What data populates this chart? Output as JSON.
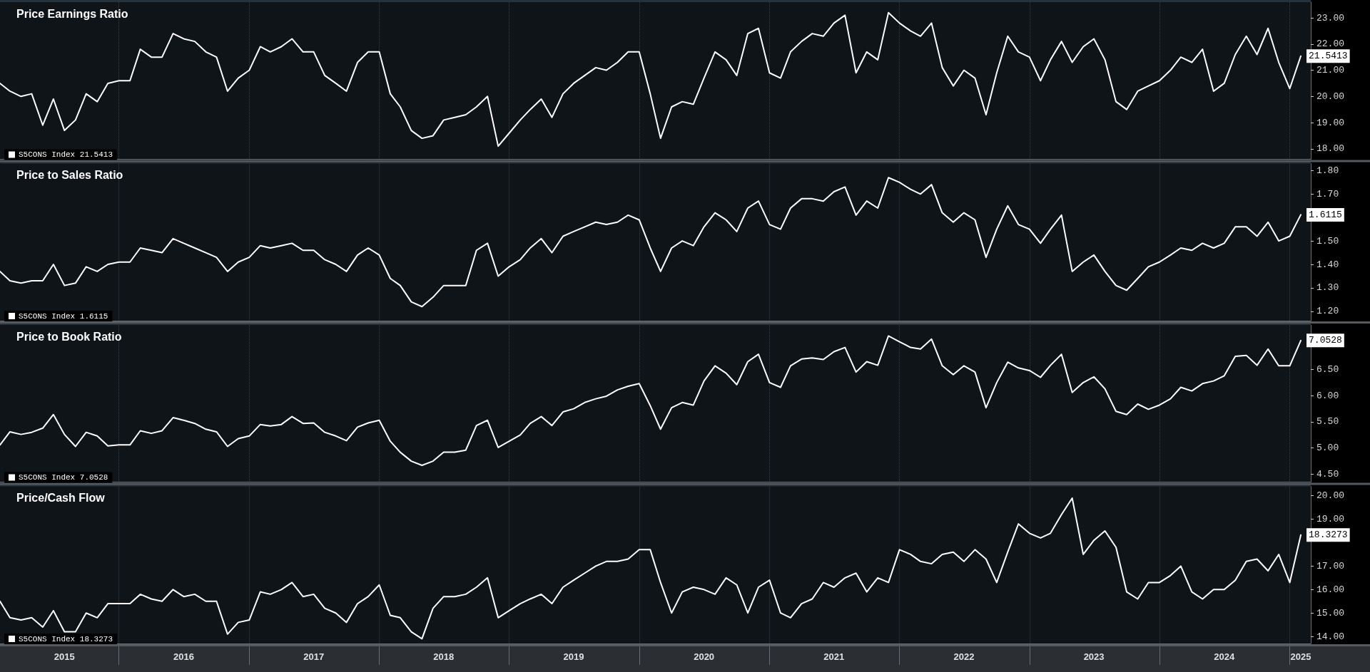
{
  "chart_data": [
    {
      "type": "line",
      "title": "Price Earnings Ratio",
      "legend": "bottom left",
      "marker": "none",
      "line_style": "solid",
      "grid": "x",
      "tick_labels": "y",
      "x": [
        "2015-02",
        "2015-03",
        "2015-04",
        "2015-05",
        "2015-06",
        "2015-07",
        "2015-08",
        "2015-09",
        "2015-10",
        "2015-11",
        "2015-12",
        "2016-01",
        "2016-02",
        "2016-03",
        "2016-04",
        "2016-05",
        "2016-06",
        "2016-07",
        "2016-08",
        "2016-09",
        "2016-10",
        "2016-11",
        "2016-12",
        "2017-01",
        "2017-02",
        "2017-03",
        "2017-04",
        "2017-05",
        "2017-06",
        "2017-07",
        "2017-08",
        "2017-09",
        "2017-10",
        "2017-11",
        "2017-12",
        "2018-01",
        "2018-02",
        "2018-03",
        "2018-04",
        "2018-05",
        "2018-06",
        "2018-07",
        "2018-08",
        "2018-09",
        "2018-10",
        "2018-11",
        "2018-12",
        "2019-01",
        "2019-02",
        "2019-03",
        "2019-04",
        "2019-05",
        "2019-06",
        "2019-07",
        "2019-08",
        "2019-09",
        "2019-10",
        "2019-11",
        "2019-12",
        "2020-01",
        "2020-02",
        "2020-03",
        "2020-04",
        "2020-05",
        "2020-06",
        "2020-07",
        "2020-08",
        "2020-09",
        "2020-10",
        "2020-11",
        "2020-12",
        "2021-01",
        "2021-02",
        "2021-03",
        "2021-04",
        "2021-05",
        "2021-06",
        "2021-07",
        "2021-08",
        "2021-09",
        "2021-10",
        "2021-11",
        "2021-12",
        "2022-01",
        "2022-02",
        "2022-03",
        "2022-04",
        "2022-05",
        "2022-06",
        "2022-07",
        "2022-08",
        "2022-09",
        "2022-10",
        "2022-11",
        "2022-12",
        "2023-01",
        "2023-02",
        "2023-03",
        "2023-04",
        "2023-05",
        "2023-06",
        "2023-07",
        "2023-08",
        "2023-09",
        "2023-10",
        "2023-11",
        "2023-12",
        "2024-01",
        "2024-02",
        "2024-03",
        "2024-04",
        "2024-05",
        "2024-06",
        "2024-07",
        "2024-08",
        "2024-09",
        "2024-10",
        "2024-11",
        "2024-12",
        "2025-01",
        "2025-02"
      ],
      "xlim": [
        "2015-02",
        "2025-03"
      ],
      "xticks": [
        {
          "value": "2016-01",
          "label": null
        },
        {
          "value": "2017-01",
          "label": null
        },
        {
          "value": "2018-01",
          "label": null
        },
        {
          "value": "2019-01",
          "label": null
        },
        {
          "value": "2020-01",
          "label": null
        },
        {
          "value": "2021-01",
          "label": null
        },
        {
          "value": "2022-01",
          "label": null
        },
        {
          "value": "2023-01",
          "label": null
        },
        {
          "value": "2024-01",
          "label": null
        },
        {
          "value": "2025-01",
          "label": null
        }
      ],
      "ylim": [
        17.6,
        23.6
      ],
      "yticks": [
        {
          "value": 18,
          "label": "18.00"
        },
        {
          "value": 19,
          "label": "19.00"
        },
        {
          "value": 20,
          "label": "20.00"
        },
        {
          "value": 21,
          "label": "21.00"
        },
        {
          "value": 22,
          "label": "22.00"
        },
        {
          "value": 23,
          "label": "23.00"
        }
      ],
      "series": [
        {
          "name": "S5CONS Index 21.5413",
          "color": "#ffffff",
          "values": [
            20.5,
            20.2,
            20.0,
            20.1,
            18.9,
            19.9,
            18.7,
            19.1,
            20.1,
            19.8,
            20.5,
            20.6,
            20.6,
            21.8,
            21.5,
            21.5,
            22.4,
            22.2,
            22.1,
            21.7,
            21.5,
            20.2,
            20.7,
            21.0,
            21.9,
            21.7,
            21.9,
            22.2,
            21.7,
            21.7,
            20.8,
            20.5,
            20.2,
            21.3,
            21.7,
            21.7,
            20.1,
            19.6,
            18.7,
            18.4,
            18.5,
            19.1,
            19.2,
            19.3,
            19.6,
            20.0,
            18.1,
            18.6,
            19.1,
            19.5,
            19.9,
            19.2,
            20.1,
            20.5,
            20.8,
            21.1,
            21.0,
            21.3,
            21.7,
            21.7,
            20.1,
            18.4,
            19.6,
            19.8,
            19.7,
            20.7,
            21.7,
            21.4,
            20.8,
            22.4,
            22.6,
            20.9,
            20.7,
            21.7,
            22.1,
            22.4,
            22.3,
            22.8,
            23.1,
            20.9,
            21.7,
            21.4,
            23.2,
            22.8,
            22.5,
            22.3,
            22.8,
            21.1,
            20.4,
            21.0,
            20.7,
            19.3,
            20.9,
            22.3,
            21.7,
            21.5,
            20.6,
            21.4,
            22.1,
            21.3,
            21.9,
            22.2,
            21.4,
            19.8,
            19.5,
            20.2,
            20.4,
            20.6,
            21.0,
            21.5,
            21.3,
            21.8,
            20.2,
            20.5,
            21.6,
            22.3,
            21.6,
            22.6,
            21.3,
            20.3,
            21.5413
          ],
          "value_labels": [
            null,
            null,
            null,
            null,
            null,
            null,
            null,
            null,
            null,
            null,
            null,
            null,
            null,
            null,
            null,
            null,
            null,
            null,
            null,
            null,
            null,
            null,
            null,
            null,
            null,
            null,
            null,
            null,
            null,
            null,
            null,
            null,
            null,
            null,
            null,
            null,
            null,
            null,
            null,
            null,
            null,
            null,
            null,
            null,
            null,
            null,
            null,
            null,
            null,
            null,
            null,
            null,
            null,
            null,
            null,
            null,
            null,
            null,
            null,
            null,
            null,
            null,
            null,
            null,
            null,
            null,
            null,
            null,
            null,
            null,
            null,
            null,
            null,
            null,
            null,
            null,
            null,
            null,
            null,
            null,
            null,
            null,
            null,
            null,
            null,
            null,
            null,
            null,
            null,
            null,
            null,
            null,
            null,
            null,
            null,
            null,
            null,
            null,
            null,
            null,
            null,
            null,
            null,
            null,
            null,
            null,
            null,
            null,
            null,
            null,
            null,
            null,
            null,
            null,
            null,
            null,
            null,
            null,
            null,
            null,
            "21.5413"
          ]
        }
      ]
    },
    {
      "type": "line",
      "title": "Price to Sales Ratio",
      "legend": "bottom left",
      "marker": "none",
      "line_style": "solid",
      "grid": "x",
      "tick_labels": "y",
      "x": [
        "2015-02",
        "2015-03",
        "2015-04",
        "2015-05",
        "2015-06",
        "2015-07",
        "2015-08",
        "2015-09",
        "2015-10",
        "2015-11",
        "2015-12",
        "2016-01",
        "2016-02",
        "2016-03",
        "2016-04",
        "2016-05",
        "2016-06",
        "2016-07",
        "2016-08",
        "2016-09",
        "2016-10",
        "2016-11",
        "2016-12",
        "2017-01",
        "2017-02",
        "2017-03",
        "2017-04",
        "2017-05",
        "2017-06",
        "2017-07",
        "2017-08",
        "2017-09",
        "2017-10",
        "2017-11",
        "2017-12",
        "2018-01",
        "2018-02",
        "2018-03",
        "2018-04",
        "2018-05",
        "2018-06",
        "2018-07",
        "2018-08",
        "2018-09",
        "2018-10",
        "2018-11",
        "2018-12",
        "2019-01",
        "2019-02",
        "2019-03",
        "2019-04",
        "2019-05",
        "2019-06",
        "2019-07",
        "2019-08",
        "2019-09",
        "2019-10",
        "2019-11",
        "2019-12",
        "2020-01",
        "2020-02",
        "2020-03",
        "2020-04",
        "2020-05",
        "2020-06",
        "2020-07",
        "2020-08",
        "2020-09",
        "2020-10",
        "2020-11",
        "2020-12",
        "2021-01",
        "2021-02",
        "2021-03",
        "2021-04",
        "2021-05",
        "2021-06",
        "2021-07",
        "2021-08",
        "2021-09",
        "2021-10",
        "2021-11",
        "2021-12",
        "2022-01",
        "2022-02",
        "2022-03",
        "2022-04",
        "2022-05",
        "2022-06",
        "2022-07",
        "2022-08",
        "2022-09",
        "2022-10",
        "2022-11",
        "2022-12",
        "2023-01",
        "2023-02",
        "2023-03",
        "2023-04",
        "2023-05",
        "2023-06",
        "2023-07",
        "2023-08",
        "2023-09",
        "2023-10",
        "2023-11",
        "2023-12",
        "2024-01",
        "2024-02",
        "2024-03",
        "2024-04",
        "2024-05",
        "2024-06",
        "2024-07",
        "2024-08",
        "2024-09",
        "2024-10",
        "2024-11",
        "2024-12",
        "2025-01",
        "2025-02"
      ],
      "xlim": [
        "2015-02",
        "2025-03"
      ],
      "xticks": [
        {
          "value": "2016-01",
          "label": null
        },
        {
          "value": "2017-01",
          "label": null
        },
        {
          "value": "2018-01",
          "label": null
        },
        {
          "value": "2019-01",
          "label": null
        },
        {
          "value": "2020-01",
          "label": null
        },
        {
          "value": "2021-01",
          "label": null
        },
        {
          "value": "2022-01",
          "label": null
        },
        {
          "value": "2023-01",
          "label": null
        },
        {
          "value": "2024-01",
          "label": null
        },
        {
          "value": "2025-01",
          "label": null
        }
      ],
      "ylim": [
        1.16,
        1.83
      ],
      "yticks": [
        {
          "value": 1.2,
          "label": "1.20"
        },
        {
          "value": 1.3,
          "label": "1.30"
        },
        {
          "value": 1.4,
          "label": "1.40"
        },
        {
          "value": 1.5,
          "label": "1.50"
        },
        {
          "value": 1.7,
          "label": "1.70"
        },
        {
          "value": 1.8,
          "label": "1.80"
        }
      ],
      "series": [
        {
          "name": "S5CONS Index 1.6115",
          "color": "#ffffff",
          "values": [
            1.37,
            1.33,
            1.32,
            1.33,
            1.33,
            1.4,
            1.31,
            1.32,
            1.39,
            1.37,
            1.4,
            1.41,
            1.41,
            1.47,
            1.46,
            1.45,
            1.51,
            1.49,
            1.47,
            1.45,
            1.43,
            1.37,
            1.41,
            1.43,
            1.48,
            1.47,
            1.48,
            1.49,
            1.46,
            1.46,
            1.42,
            1.4,
            1.37,
            1.44,
            1.47,
            1.44,
            1.34,
            1.31,
            1.24,
            1.22,
            1.26,
            1.31,
            1.31,
            1.31,
            1.46,
            1.49,
            1.35,
            1.39,
            1.42,
            1.47,
            1.51,
            1.45,
            1.52,
            1.54,
            1.56,
            1.58,
            1.57,
            1.58,
            1.61,
            1.59,
            1.47,
            1.37,
            1.47,
            1.5,
            1.48,
            1.56,
            1.62,
            1.59,
            1.54,
            1.64,
            1.67,
            1.57,
            1.55,
            1.64,
            1.68,
            1.68,
            1.67,
            1.71,
            1.73,
            1.61,
            1.67,
            1.64,
            1.77,
            1.75,
            1.72,
            1.7,
            1.74,
            1.62,
            1.58,
            1.62,
            1.59,
            1.43,
            1.55,
            1.65,
            1.57,
            1.55,
            1.49,
            1.55,
            1.61,
            1.37,
            1.41,
            1.44,
            1.37,
            1.31,
            1.29,
            1.34,
            1.39,
            1.41,
            1.44,
            1.47,
            1.46,
            1.49,
            1.47,
            1.49,
            1.56,
            1.56,
            1.52,
            1.58,
            1.5,
            1.52,
            1.6115
          ],
          "value_labels": [
            null,
            null,
            null,
            null,
            null,
            null,
            null,
            null,
            null,
            null,
            null,
            null,
            null,
            null,
            null,
            null,
            null,
            null,
            null,
            null,
            null,
            null,
            null,
            null,
            null,
            null,
            null,
            null,
            null,
            null,
            null,
            null,
            null,
            null,
            null,
            null,
            null,
            null,
            null,
            null,
            null,
            null,
            null,
            null,
            null,
            null,
            null,
            null,
            null,
            null,
            null,
            null,
            null,
            null,
            null,
            null,
            null,
            null,
            null,
            null,
            null,
            null,
            null,
            null,
            null,
            null,
            null,
            null,
            null,
            null,
            null,
            null,
            null,
            null,
            null,
            null,
            null,
            null,
            null,
            null,
            null,
            null,
            null,
            null,
            null,
            null,
            null,
            null,
            null,
            null,
            null,
            null,
            null,
            null,
            null,
            null,
            null,
            null,
            null,
            null,
            null,
            null,
            null,
            null,
            null,
            null,
            null,
            null,
            null,
            null,
            null,
            null,
            null,
            null,
            null,
            null,
            null,
            null,
            null,
            null,
            "1.6115"
          ]
        }
      ]
    },
    {
      "type": "line",
      "title": "Price to Book Ratio",
      "legend": "bottom left",
      "marker": "none",
      "line_style": "solid",
      "grid": "x",
      "tick_labels": "y",
      "x": [
        "2015-02",
        "2015-03",
        "2015-04",
        "2015-05",
        "2015-06",
        "2015-07",
        "2015-08",
        "2015-09",
        "2015-10",
        "2015-11",
        "2015-12",
        "2016-01",
        "2016-02",
        "2016-03",
        "2016-04",
        "2016-05",
        "2016-06",
        "2016-07",
        "2016-08",
        "2016-09",
        "2016-10",
        "2016-11",
        "2016-12",
        "2017-01",
        "2017-02",
        "2017-03",
        "2017-04",
        "2017-05",
        "2017-06",
        "2017-07",
        "2017-08",
        "2017-09",
        "2017-10",
        "2017-11",
        "2017-12",
        "2018-01",
        "2018-02",
        "2018-03",
        "2018-04",
        "2018-05",
        "2018-06",
        "2018-07",
        "2018-08",
        "2018-09",
        "2018-10",
        "2018-11",
        "2018-12",
        "2019-01",
        "2019-02",
        "2019-03",
        "2019-04",
        "2019-05",
        "2019-06",
        "2019-07",
        "2019-08",
        "2019-09",
        "2019-10",
        "2019-11",
        "2019-12",
        "2020-01",
        "2020-02",
        "2020-03",
        "2020-04",
        "2020-05",
        "2020-06",
        "2020-07",
        "2020-08",
        "2020-09",
        "2020-10",
        "2020-11",
        "2020-12",
        "2021-01",
        "2021-02",
        "2021-03",
        "2021-04",
        "2021-05",
        "2021-06",
        "2021-07",
        "2021-08",
        "2021-09",
        "2021-10",
        "2021-11",
        "2021-12",
        "2022-01",
        "2022-02",
        "2022-03",
        "2022-04",
        "2022-05",
        "2022-06",
        "2022-07",
        "2022-08",
        "2022-09",
        "2022-10",
        "2022-11",
        "2022-12",
        "2023-01",
        "2023-02",
        "2023-03",
        "2023-04",
        "2023-05",
        "2023-06",
        "2023-07",
        "2023-08",
        "2023-09",
        "2023-10",
        "2023-11",
        "2023-12",
        "2024-01",
        "2024-02",
        "2024-03",
        "2024-04",
        "2024-05",
        "2024-06",
        "2024-07",
        "2024-08",
        "2024-09",
        "2024-10",
        "2024-11",
        "2024-12",
        "2025-01",
        "2025-02"
      ],
      "xlim": [
        "2015-02",
        "2025-03"
      ],
      "xticks": [
        {
          "value": "2016-01",
          "label": null
        },
        {
          "value": "2017-01",
          "label": null
        },
        {
          "value": "2018-01",
          "label": null
        },
        {
          "value": "2019-01",
          "label": null
        },
        {
          "value": "2020-01",
          "label": null
        },
        {
          "value": "2021-01",
          "label": null
        },
        {
          "value": "2022-01",
          "label": null
        },
        {
          "value": "2023-01",
          "label": null
        },
        {
          "value": "2024-01",
          "label": null
        },
        {
          "value": "2025-01",
          "label": null
        }
      ],
      "ylim": [
        4.35,
        7.35
      ],
      "yticks": [
        {
          "value": 4.5,
          "label": "4.50"
        },
        {
          "value": 5,
          "label": "5.00"
        },
        {
          "value": 5.5,
          "label": "5.50"
        },
        {
          "value": 6,
          "label": "6.00"
        },
        {
          "value": 6.5,
          "label": "6.50"
        }
      ],
      "series": [
        {
          "name": "S5CONS Index 7.0528",
          "color": "#ffffff",
          "values": [
            5.06,
            5.31,
            5.26,
            5.3,
            5.38,
            5.64,
            5.26,
            5.03,
            5.3,
            5.23,
            5.04,
            5.06,
            5.06,
            5.33,
            5.28,
            5.33,
            5.58,
            5.53,
            5.47,
            5.36,
            5.31,
            5.03,
            5.18,
            5.23,
            5.45,
            5.42,
            5.45,
            5.6,
            5.47,
            5.48,
            5.3,
            5.23,
            5.14,
            5.4,
            5.48,
            5.53,
            5.13,
            4.92,
            4.75,
            4.67,
            4.75,
            4.92,
            4.92,
            4.96,
            5.43,
            5.53,
            5.01,
            5.13,
            5.25,
            5.47,
            5.6,
            5.43,
            5.69,
            5.75,
            5.87,
            5.94,
            5.99,
            6.11,
            6.18,
            6.23,
            5.81,
            5.36,
            5.77,
            5.87,
            5.82,
            6.28,
            6.57,
            6.43,
            6.21,
            6.65,
            6.79,
            6.25,
            6.16,
            6.57,
            6.7,
            6.72,
            6.69,
            6.84,
            6.92,
            6.45,
            6.65,
            6.58,
            7.14,
            7.03,
            6.92,
            6.89,
            7.08,
            6.57,
            6.4,
            6.57,
            6.45,
            5.77,
            6.25,
            6.64,
            6.53,
            6.48,
            6.35,
            6.58,
            6.79,
            6.06,
            6.25,
            6.36,
            6.13,
            5.7,
            5.64,
            5.84,
            5.74,
            5.82,
            5.94,
            6.16,
            6.09,
            6.23,
            6.28,
            6.38,
            6.75,
            6.77,
            6.58,
            6.89,
            6.57,
            6.57,
            7.0528
          ],
          "value_labels": [
            null,
            null,
            null,
            null,
            null,
            null,
            null,
            null,
            null,
            null,
            null,
            null,
            null,
            null,
            null,
            null,
            null,
            null,
            null,
            null,
            null,
            null,
            null,
            null,
            null,
            null,
            null,
            null,
            null,
            null,
            null,
            null,
            null,
            null,
            null,
            null,
            null,
            null,
            null,
            null,
            null,
            null,
            null,
            null,
            null,
            null,
            null,
            null,
            null,
            null,
            null,
            null,
            null,
            null,
            null,
            null,
            null,
            null,
            null,
            null,
            null,
            null,
            null,
            null,
            null,
            null,
            null,
            null,
            null,
            null,
            null,
            null,
            null,
            null,
            null,
            null,
            null,
            null,
            null,
            null,
            null,
            null,
            null,
            null,
            null,
            null,
            null,
            null,
            null,
            null,
            null,
            null,
            null,
            null,
            null,
            null,
            null,
            null,
            null,
            null,
            null,
            null,
            null,
            null,
            null,
            null,
            null,
            null,
            null,
            null,
            null,
            null,
            null,
            null,
            null,
            null,
            null,
            null,
            null,
            null,
            "7.0528"
          ]
        }
      ]
    },
    {
      "type": "line",
      "title": "Price/Cash Flow",
      "legend": "bottom left",
      "marker": "none",
      "line_style": "solid",
      "grid": "x",
      "x": [
        "2015-02",
        "2015-03",
        "2015-04",
        "2015-05",
        "2015-06",
        "2015-07",
        "2015-08",
        "2015-09",
        "2015-10",
        "2015-11",
        "2015-12",
        "2016-01",
        "2016-02",
        "2016-03",
        "2016-04",
        "2016-05",
        "2016-06",
        "2016-07",
        "2016-08",
        "2016-09",
        "2016-10",
        "2016-11",
        "2016-12",
        "2017-01",
        "2017-02",
        "2017-03",
        "2017-04",
        "2017-05",
        "2017-06",
        "2017-07",
        "2017-08",
        "2017-09",
        "2017-10",
        "2017-11",
        "2017-12",
        "2018-01",
        "2018-02",
        "2018-03",
        "2018-04",
        "2018-05",
        "2018-06",
        "2018-07",
        "2018-08",
        "2018-09",
        "2018-10",
        "2018-11",
        "2018-12",
        "2019-01",
        "2019-02",
        "2019-03",
        "2019-04",
        "2019-05",
        "2019-06",
        "2019-07",
        "2019-08",
        "2019-09",
        "2019-10",
        "2019-11",
        "2019-12",
        "2020-01",
        "2020-02",
        "2020-03",
        "2020-04",
        "2020-05",
        "2020-06",
        "2020-07",
        "2020-08",
        "2020-09",
        "2020-10",
        "2020-11",
        "2020-12",
        "2021-01",
        "2021-02",
        "2021-03",
        "2021-04",
        "2021-05",
        "2021-06",
        "2021-07",
        "2021-08",
        "2021-09",
        "2021-10",
        "2021-11",
        "2021-12",
        "2022-01",
        "2022-02",
        "2022-03",
        "2022-04",
        "2022-05",
        "2022-06",
        "2022-07",
        "2022-08",
        "2022-09",
        "2022-10",
        "2022-11",
        "2022-12",
        "2023-01",
        "2023-02",
        "2023-03",
        "2023-04",
        "2023-05",
        "2023-06",
        "2023-07",
        "2023-08",
        "2023-09",
        "2023-10",
        "2023-11",
        "2023-12",
        "2024-01",
        "2024-02",
        "2024-03",
        "2024-04",
        "2024-05",
        "2024-06",
        "2024-07",
        "2024-08",
        "2024-09",
        "2024-10",
        "2024-11",
        "2024-12",
        "2025-01",
        "2025-02"
      ],
      "xlim": [
        "2015-02",
        "2025-03"
      ],
      "xticks": [
        {
          "value": "2016-01",
          "label": null
        },
        {
          "value": "2017-01",
          "label": null
        },
        {
          "value": "2018-01",
          "label": null
        },
        {
          "value": "2019-01",
          "label": null
        },
        {
          "value": "2020-01",
          "label": null
        },
        {
          "value": "2021-01",
          "label": null
        },
        {
          "value": "2022-01",
          "label": null
        },
        {
          "value": "2023-01",
          "label": null
        },
        {
          "value": "2024-01",
          "label": null
        },
        {
          "value": "2025-01",
          "label": null
        },
        {
          "value": "2015-08",
          "label": "2015"
        },
        {
          "value": "2016-07",
          "label": "2016"
        },
        {
          "value": "2017-07",
          "label": "2017"
        },
        {
          "value": "2018-07",
          "label": "2018"
        },
        {
          "value": "2019-07",
          "label": "2019"
        },
        {
          "value": "2020-07",
          "label": "2020"
        },
        {
          "value": "2021-07",
          "label": "2021"
        },
        {
          "value": "2022-07",
          "label": "2022"
        },
        {
          "value": "2023-07",
          "label": "2023"
        },
        {
          "value": "2024-07",
          "label": "2024"
        },
        {
          "value": "2025-02",
          "label": "2025"
        }
      ],
      "ylim": [
        13.7,
        20.4
      ],
      "yticks": [
        {
          "value": 14,
          "label": "14.00"
        },
        {
          "value": 15,
          "label": "15.00"
        },
        {
          "value": 16,
          "label": "16.00"
        },
        {
          "value": 17,
          "label": "17.00"
        },
        {
          "value": 19,
          "label": "19.00"
        },
        {
          "value": 20,
          "label": "20.00"
        }
      ],
      "series": [
        {
          "name": "S5CONS Index 18.3273",
          "color": "#ffffff",
          "values": [
            15.5,
            14.8,
            14.7,
            14.8,
            14.4,
            15.1,
            14.2,
            14.2,
            15.0,
            14.8,
            15.4,
            15.4,
            15.4,
            15.8,
            15.6,
            15.5,
            16.0,
            15.7,
            15.8,
            15.5,
            15.5,
            14.1,
            14.6,
            14.7,
            15.9,
            15.8,
            16.0,
            16.3,
            15.7,
            15.8,
            15.2,
            15.0,
            14.6,
            15.4,
            15.7,
            16.2,
            14.9,
            14.8,
            14.2,
            13.9,
            15.2,
            15.7,
            15.7,
            15.8,
            16.1,
            16.5,
            14.8,
            15.1,
            15.4,
            15.6,
            15.8,
            15.4,
            16.1,
            16.4,
            16.7,
            17.0,
            17.2,
            17.2,
            17.3,
            17.7,
            17.7,
            16.3,
            15.0,
            15.9,
            16.1,
            16.0,
            15.8,
            16.5,
            16.2,
            15.0,
            16.1,
            16.4,
            15.0,
            14.8,
            15.4,
            15.6,
            16.3,
            16.1,
            16.5,
            16.7,
            15.9,
            16.5,
            16.3,
            17.7,
            17.5,
            17.2,
            17.1,
            17.5,
            17.6,
            17.2,
            17.7,
            17.3,
            16.3,
            17.6,
            18.8,
            18.4,
            18.2,
            18.4,
            19.2,
            19.9,
            17.5,
            18.1,
            18.5,
            17.8,
            15.9,
            15.6,
            16.3,
            16.3,
            16.6,
            17.0,
            15.9,
            15.6,
            16.0,
            16.0,
            16.4,
            17.2,
            17.3,
            16.8,
            17.5,
            16.3,
            18.3273
          ],
          "value_labels": [
            null,
            null,
            null,
            null,
            null,
            null,
            null,
            null,
            null,
            null,
            null,
            null,
            null,
            null,
            null,
            null,
            null,
            null,
            null,
            null,
            null,
            null,
            null,
            null,
            null,
            null,
            null,
            null,
            null,
            null,
            null,
            null,
            null,
            null,
            null,
            null,
            null,
            null,
            null,
            null,
            null,
            null,
            null,
            null,
            null,
            null,
            null,
            null,
            null,
            null,
            null,
            null,
            null,
            null,
            null,
            null,
            null,
            null,
            null,
            null,
            null,
            null,
            null,
            null,
            null,
            null,
            null,
            null,
            null,
            null,
            null,
            null,
            null,
            null,
            null,
            null,
            null,
            null,
            null,
            null,
            null,
            null,
            null,
            null,
            null,
            null,
            null,
            null,
            null,
            null,
            null,
            null,
            null,
            null,
            null,
            null,
            null,
            null,
            null,
            null,
            null,
            null,
            null,
            null,
            null,
            null,
            null,
            null,
            null,
            null,
            null,
            null,
            null,
            null,
            null,
            null,
            null,
            null,
            null,
            null,
            "18.3273"
          ]
        }
      ]
    }
  ]
}
